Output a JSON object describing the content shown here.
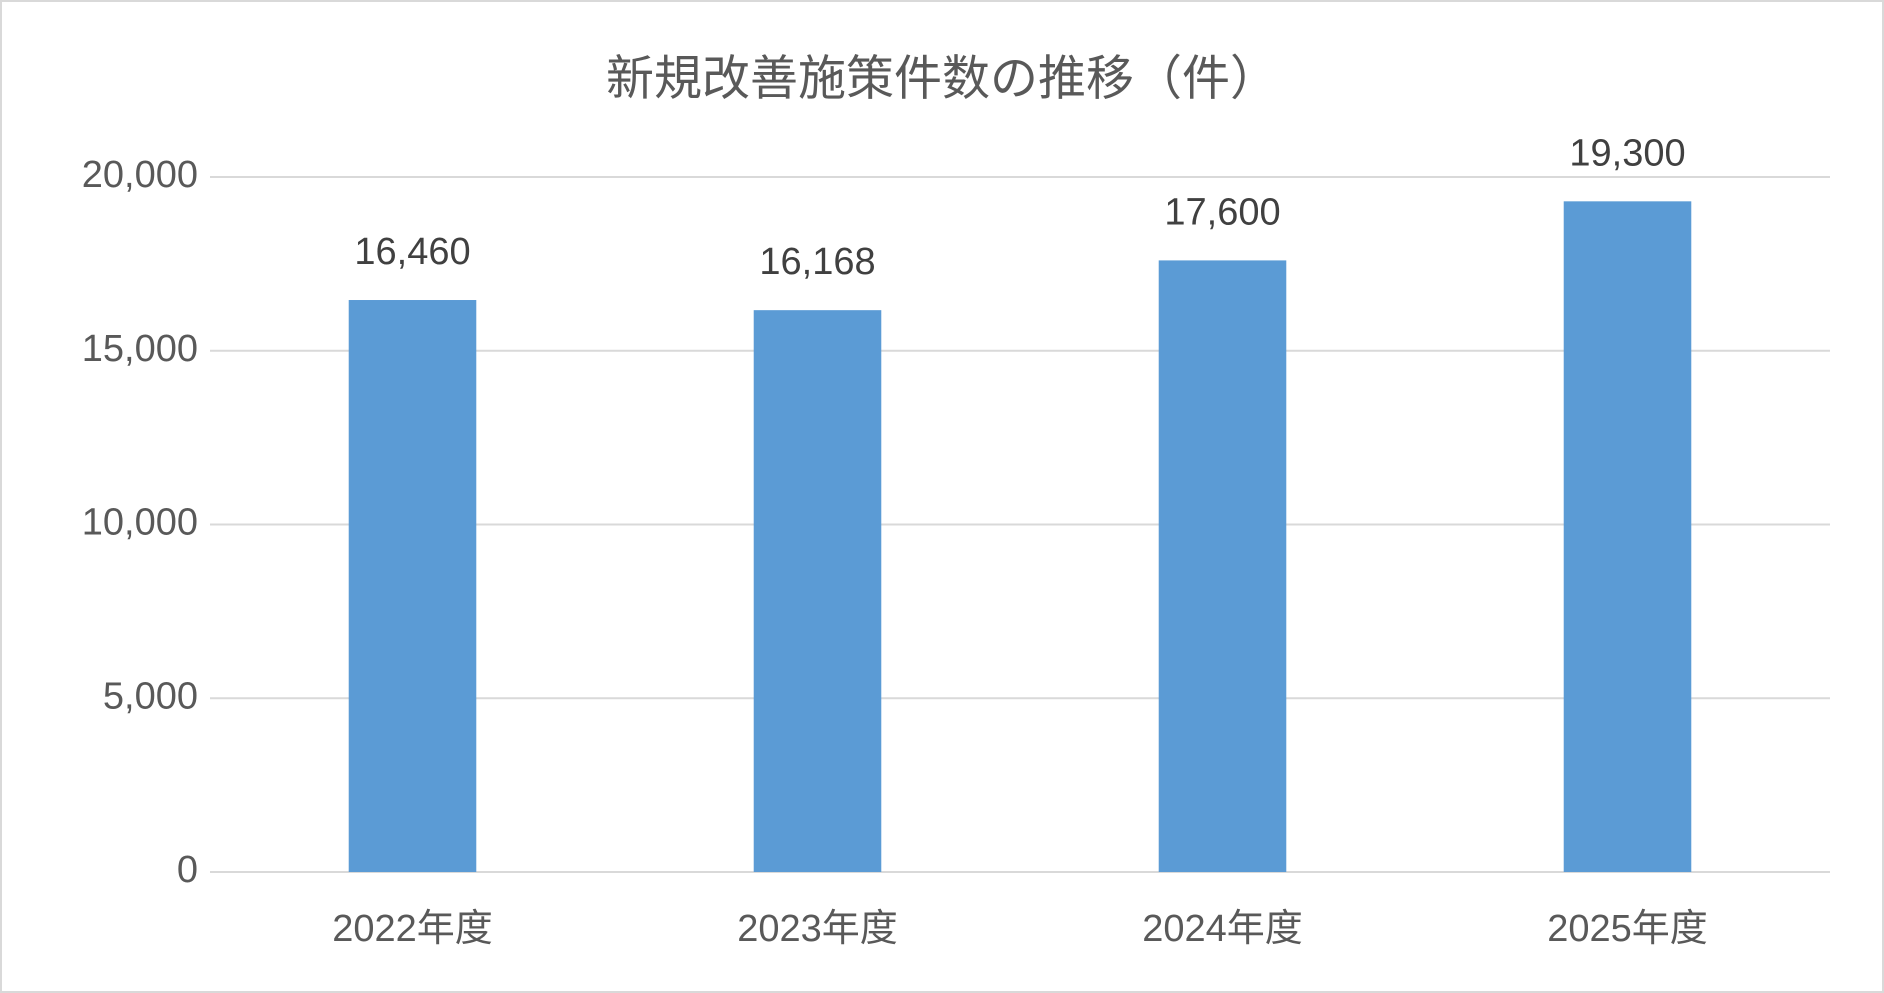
{
  "chart_data": {
    "type": "bar",
    "title": "新規改善施策件数の推移（件）",
    "categories": [
      "2022年度",
      "2023年度",
      "2024年度",
      "2025年度"
    ],
    "values": [
      16460,
      16168,
      17600,
      19300
    ],
    "value_labels": [
      "16,460",
      "16,168",
      "17,600",
      "19,300"
    ],
    "color": "#5b9bd5",
    "ylim": [
      0,
      20000
    ],
    "yticks": [
      0,
      {
        "value": 5000,
        "label": "5,000"
      },
      {
        "value": 10000,
        "label": "10,000"
      },
      {
        "value": 15000,
        "label": "15,000"
      },
      {
        "value": 20000,
        "label": "20,000"
      }
    ],
    "grid": true
  }
}
